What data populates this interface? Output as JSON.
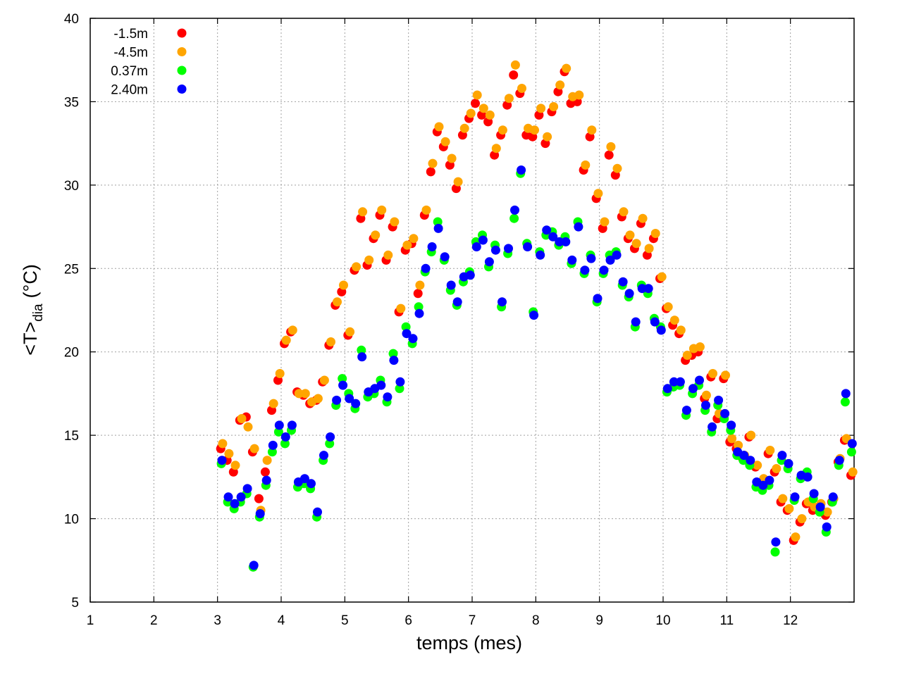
{
  "chart_data": {
    "type": "scatter",
    "title": "",
    "xlabel": "temps (mes)",
    "ylabel": {
      "main": "<T>",
      "sub": "dia",
      "unit": "(°C)"
    },
    "xlim": [
      1,
      13
    ],
    "ylim": [
      5,
      40
    ],
    "xticks": [
      1,
      2,
      3,
      4,
      5,
      6,
      7,
      8,
      9,
      10,
      11,
      12
    ],
    "yticks": [
      5,
      10,
      15,
      20,
      25,
      30,
      35,
      40
    ],
    "grid": true,
    "legend_position": "top-left",
    "series": [
      {
        "name": "-1.5m",
        "color": "#ff0000",
        "x": [
          3.05,
          3.15,
          3.25,
          3.35,
          3.45,
          3.55,
          3.65,
          3.75,
          3.85,
          3.95,
          4.05,
          4.15,
          4.25,
          4.35,
          4.45,
          4.55,
          4.65,
          4.75,
          4.85,
          4.95,
          5.05,
          5.15,
          5.25,
          5.35,
          5.45,
          5.55,
          5.65,
          5.75,
          5.85,
          5.95,
          6.05,
          6.15,
          6.25,
          6.35,
          6.45,
          6.55,
          6.65,
          6.75,
          6.85,
          6.95,
          7.05,
          7.15,
          7.25,
          7.35,
          7.45,
          7.55,
          7.65,
          7.75,
          7.85,
          7.95,
          8.05,
          8.15,
          8.25,
          8.35,
          8.45,
          8.55,
          8.65,
          8.75,
          8.85,
          8.95,
          9.05,
          9.15,
          9.25,
          9.35,
          9.45,
          9.55,
          9.65,
          9.75,
          9.85,
          9.95,
          10.05,
          10.15,
          10.25,
          10.35,
          10.45,
          10.55,
          10.65,
          10.75,
          10.85,
          10.95,
          11.05,
          11.15,
          11.25,
          11.35,
          11.45,
          11.55,
          11.65,
          11.75,
          11.85,
          11.95,
          12.05,
          12.15,
          12.25,
          12.35,
          12.45,
          12.55,
          12.65,
          12.75,
          12.85,
          12.95
        ],
        "y": [
          14.2,
          13.5,
          12.8,
          15.9,
          16.1,
          14.0,
          11.2,
          12.8,
          16.5,
          18.3,
          20.5,
          21.2,
          17.6,
          17.4,
          16.9,
          17.1,
          18.2,
          20.4,
          22.8,
          23.6,
          21.0,
          24.9,
          28.0,
          25.2,
          26.8,
          28.2,
          25.5,
          27.5,
          22.4,
          26.1,
          26.5,
          23.5,
          28.2,
          30.8,
          33.2,
          32.3,
          31.2,
          29.8,
          33.0,
          34.0,
          34.9,
          34.2,
          33.8,
          31.8,
          33.0,
          34.8,
          36.6,
          35.5,
          33.0,
          32.9,
          34.2,
          32.5,
          34.4,
          35.6,
          36.8,
          34.9,
          35.0,
          30.9,
          32.9,
          29.2,
          27.4,
          31.8,
          30.6,
          28.1,
          26.8,
          26.2,
          27.7,
          25.8,
          26.8,
          24.4,
          22.6,
          21.6,
          21.1,
          19.5,
          19.8,
          20.0,
          17.2,
          18.5,
          16.0,
          18.4,
          14.6,
          14.2,
          13.6,
          14.9,
          13.1,
          12.2,
          13.9,
          12.8,
          11.0,
          10.5,
          8.7,
          9.8,
          10.9,
          10.5,
          10.7,
          10.2,
          11.0,
          13.4,
          14.7,
          12.6
        ]
      },
      {
        "name": "-4.5m",
        "color": "#ffa500",
        "x": [
          3.08,
          3.18,
          3.28,
          3.38,
          3.48,
          3.58,
          3.68,
          3.78,
          3.88,
          3.98,
          4.08,
          4.18,
          4.28,
          4.38,
          4.48,
          4.58,
          4.68,
          4.78,
          4.88,
          4.98,
          5.08,
          5.18,
          5.28,
          5.38,
          5.48,
          5.58,
          5.68,
          5.78,
          5.88,
          5.98,
          6.08,
          6.18,
          6.28,
          6.38,
          6.48,
          6.58,
          6.68,
          6.78,
          6.88,
          6.98,
          7.08,
          7.18,
          7.28,
          7.38,
          7.48,
          7.58,
          7.68,
          7.78,
          7.88,
          7.98,
          8.08,
          8.18,
          8.28,
          8.38,
          8.48,
          8.58,
          8.68,
          8.78,
          8.88,
          8.98,
          9.08,
          9.18,
          9.28,
          9.38,
          9.48,
          9.58,
          9.68,
          9.78,
          9.88,
          9.98,
          10.08,
          10.18,
          10.28,
          10.38,
          10.48,
          10.58,
          10.68,
          10.78,
          10.88,
          10.98,
          11.08,
          11.18,
          11.28,
          11.38,
          11.48,
          11.58,
          11.68,
          11.78,
          11.88,
          11.98,
          12.08,
          12.18,
          12.28,
          12.38,
          12.48,
          12.58,
          12.68,
          12.78,
          12.88,
          12.98
        ],
        "y": [
          14.5,
          13.9,
          13.2,
          16.0,
          15.5,
          14.2,
          10.5,
          13.5,
          16.9,
          18.7,
          20.7,
          21.3,
          17.5,
          17.5,
          17.0,
          17.2,
          18.3,
          20.6,
          23.0,
          24.0,
          21.2,
          25.1,
          28.4,
          25.5,
          27.0,
          28.5,
          25.8,
          27.8,
          22.6,
          26.4,
          26.8,
          24.0,
          28.5,
          31.3,
          33.5,
          32.6,
          31.6,
          30.2,
          33.4,
          34.3,
          35.4,
          34.6,
          34.2,
          32.2,
          33.3,
          35.2,
          37.2,
          35.8,
          33.4,
          33.3,
          34.6,
          32.9,
          34.7,
          36.0,
          37.0,
          35.3,
          35.4,
          31.2,
          33.3,
          29.5,
          27.8,
          32.3,
          31.0,
          28.4,
          27.0,
          26.5,
          28.0,
          26.2,
          27.1,
          24.5,
          22.7,
          21.9,
          21.3,
          19.8,
          20.2,
          20.3,
          17.4,
          18.7,
          16.3,
          18.6,
          14.8,
          14.4,
          13.8,
          15.0,
          13.2,
          12.4,
          14.1,
          13.0,
          11.2,
          10.6,
          8.9,
          10.0,
          11.0,
          10.7,
          10.9,
          10.4,
          11.2,
          13.6,
          14.8,
          12.8
        ]
      },
      {
        "name": "0.37m",
        "color": "#00ff00",
        "x": [
          3.06,
          3.16,
          3.26,
          3.36,
          3.46,
          3.56,
          3.66,
          3.76,
          3.86,
          3.96,
          4.06,
          4.16,
          4.26,
          4.36,
          4.46,
          4.56,
          4.66,
          4.76,
          4.86,
          4.96,
          5.06,
          5.16,
          5.26,
          5.36,
          5.46,
          5.56,
          5.66,
          5.76,
          5.86,
          5.96,
          6.06,
          6.16,
          6.26,
          6.36,
          6.46,
          6.56,
          6.66,
          6.76,
          6.86,
          6.96,
          7.06,
          7.16,
          7.26,
          7.36,
          7.46,
          7.56,
          7.66,
          7.76,
          7.86,
          7.96,
          8.06,
          8.16,
          8.26,
          8.36,
          8.46,
          8.56,
          8.66,
          8.76,
          8.86,
          8.96,
          9.06,
          9.16,
          9.26,
          9.36,
          9.46,
          9.56,
          9.66,
          9.76,
          9.86,
          9.96,
          10.06,
          10.16,
          10.26,
          10.36,
          10.46,
          10.56,
          10.66,
          10.76,
          10.86,
          10.96,
          11.06,
          11.16,
          11.26,
          11.36,
          11.46,
          11.56,
          11.66,
          11.76,
          11.86,
          11.96,
          12.06,
          12.16,
          12.26,
          12.36,
          12.46,
          12.56,
          12.66,
          12.76,
          12.86,
          12.96
        ],
        "y": [
          13.3,
          11.0,
          10.6,
          11.0,
          11.5,
          7.1,
          10.1,
          12.0,
          14.0,
          15.2,
          14.5,
          15.3,
          11.9,
          12.1,
          11.8,
          10.1,
          13.5,
          14.5,
          16.8,
          18.4,
          17.5,
          16.6,
          20.1,
          17.3,
          17.5,
          18.3,
          17.0,
          19.9,
          17.8,
          21.5,
          20.5,
          22.7,
          24.8,
          26.0,
          27.8,
          25.5,
          23.7,
          22.8,
          24.2,
          24.8,
          26.6,
          27.0,
          25.1,
          26.4,
          22.7,
          25.9,
          28.0,
          30.7,
          26.5,
          22.4,
          26.0,
          27.0,
          27.2,
          26.4,
          26.9,
          25.3,
          27.8,
          24.7,
          25.8,
          23.0,
          24.7,
          25.8,
          26.0,
          24.0,
          23.3,
          21.5,
          24.0,
          23.5,
          22.0,
          21.5,
          17.6,
          17.9,
          18.0,
          16.2,
          17.5,
          18.0,
          16.5,
          15.2,
          16.8,
          16.0,
          15.3,
          13.8,
          13.5,
          13.2,
          11.9,
          11.7,
          12.0,
          8.0,
          13.5,
          13.0,
          11.1,
          12.4,
          12.8,
          11.2,
          10.4,
          9.2,
          11.0,
          13.2,
          17.0,
          14.0
        ]
      },
      {
        "name": "2.40m",
        "color": "#0000ff",
        "x": [
          3.07,
          3.17,
          3.27,
          3.37,
          3.47,
          3.57,
          3.67,
          3.77,
          3.87,
          3.97,
          4.07,
          4.17,
          4.27,
          4.37,
          4.47,
          4.57,
          4.67,
          4.77,
          4.87,
          4.97,
          5.07,
          5.17,
          5.27,
          5.37,
          5.47,
          5.57,
          5.67,
          5.77,
          5.87,
          5.97,
          6.07,
          6.17,
          6.27,
          6.37,
          6.47,
          6.57,
          6.67,
          6.77,
          6.87,
          6.97,
          7.07,
          7.17,
          7.27,
          7.37,
          7.47,
          7.57,
          7.67,
          7.77,
          7.87,
          7.97,
          8.07,
          8.17,
          8.27,
          8.37,
          8.47,
          8.57,
          8.67,
          8.77,
          8.87,
          8.97,
          9.07,
          9.17,
          9.27,
          9.37,
          9.47,
          9.57,
          9.67,
          9.77,
          9.87,
          9.97,
          10.07,
          10.17,
          10.27,
          10.37,
          10.47,
          10.57,
          10.67,
          10.77,
          10.87,
          10.97,
          11.07,
          11.17,
          11.27,
          11.37,
          11.47,
          11.57,
          11.67,
          11.77,
          11.87,
          11.97,
          12.07,
          12.17,
          12.27,
          12.37,
          12.47,
          12.57,
          12.67,
          12.77,
          12.87,
          12.97
        ],
        "y": [
          13.5,
          11.3,
          10.9,
          11.3,
          11.8,
          7.2,
          10.3,
          12.3,
          14.4,
          15.6,
          14.9,
          15.6,
          12.2,
          12.4,
          12.1,
          10.4,
          13.8,
          14.9,
          17.1,
          18.0,
          17.2,
          16.9,
          19.7,
          17.6,
          17.8,
          18.0,
          17.3,
          19.5,
          18.2,
          21.1,
          20.8,
          22.3,
          25.0,
          26.3,
          27.4,
          25.7,
          24.0,
          23.0,
          24.5,
          24.6,
          26.3,
          26.7,
          25.4,
          26.1,
          23.0,
          26.2,
          28.5,
          30.9,
          26.3,
          22.2,
          25.8,
          27.3,
          26.9,
          26.6,
          26.6,
          25.5,
          27.5,
          24.9,
          25.6,
          23.2,
          24.9,
          25.5,
          25.8,
          24.2,
          23.5,
          21.8,
          23.8,
          23.8,
          21.8,
          21.3,
          17.8,
          18.2,
          18.2,
          16.5,
          17.8,
          18.3,
          16.8,
          15.5,
          17.1,
          16.3,
          15.6,
          14.0,
          13.8,
          13.5,
          12.2,
          12.0,
          12.3,
          8.6,
          13.8,
          13.3,
          11.3,
          12.6,
          12.5,
          11.5,
          10.7,
          9.5,
          11.3,
          13.5,
          17.5,
          14.5
        ]
      }
    ]
  }
}
